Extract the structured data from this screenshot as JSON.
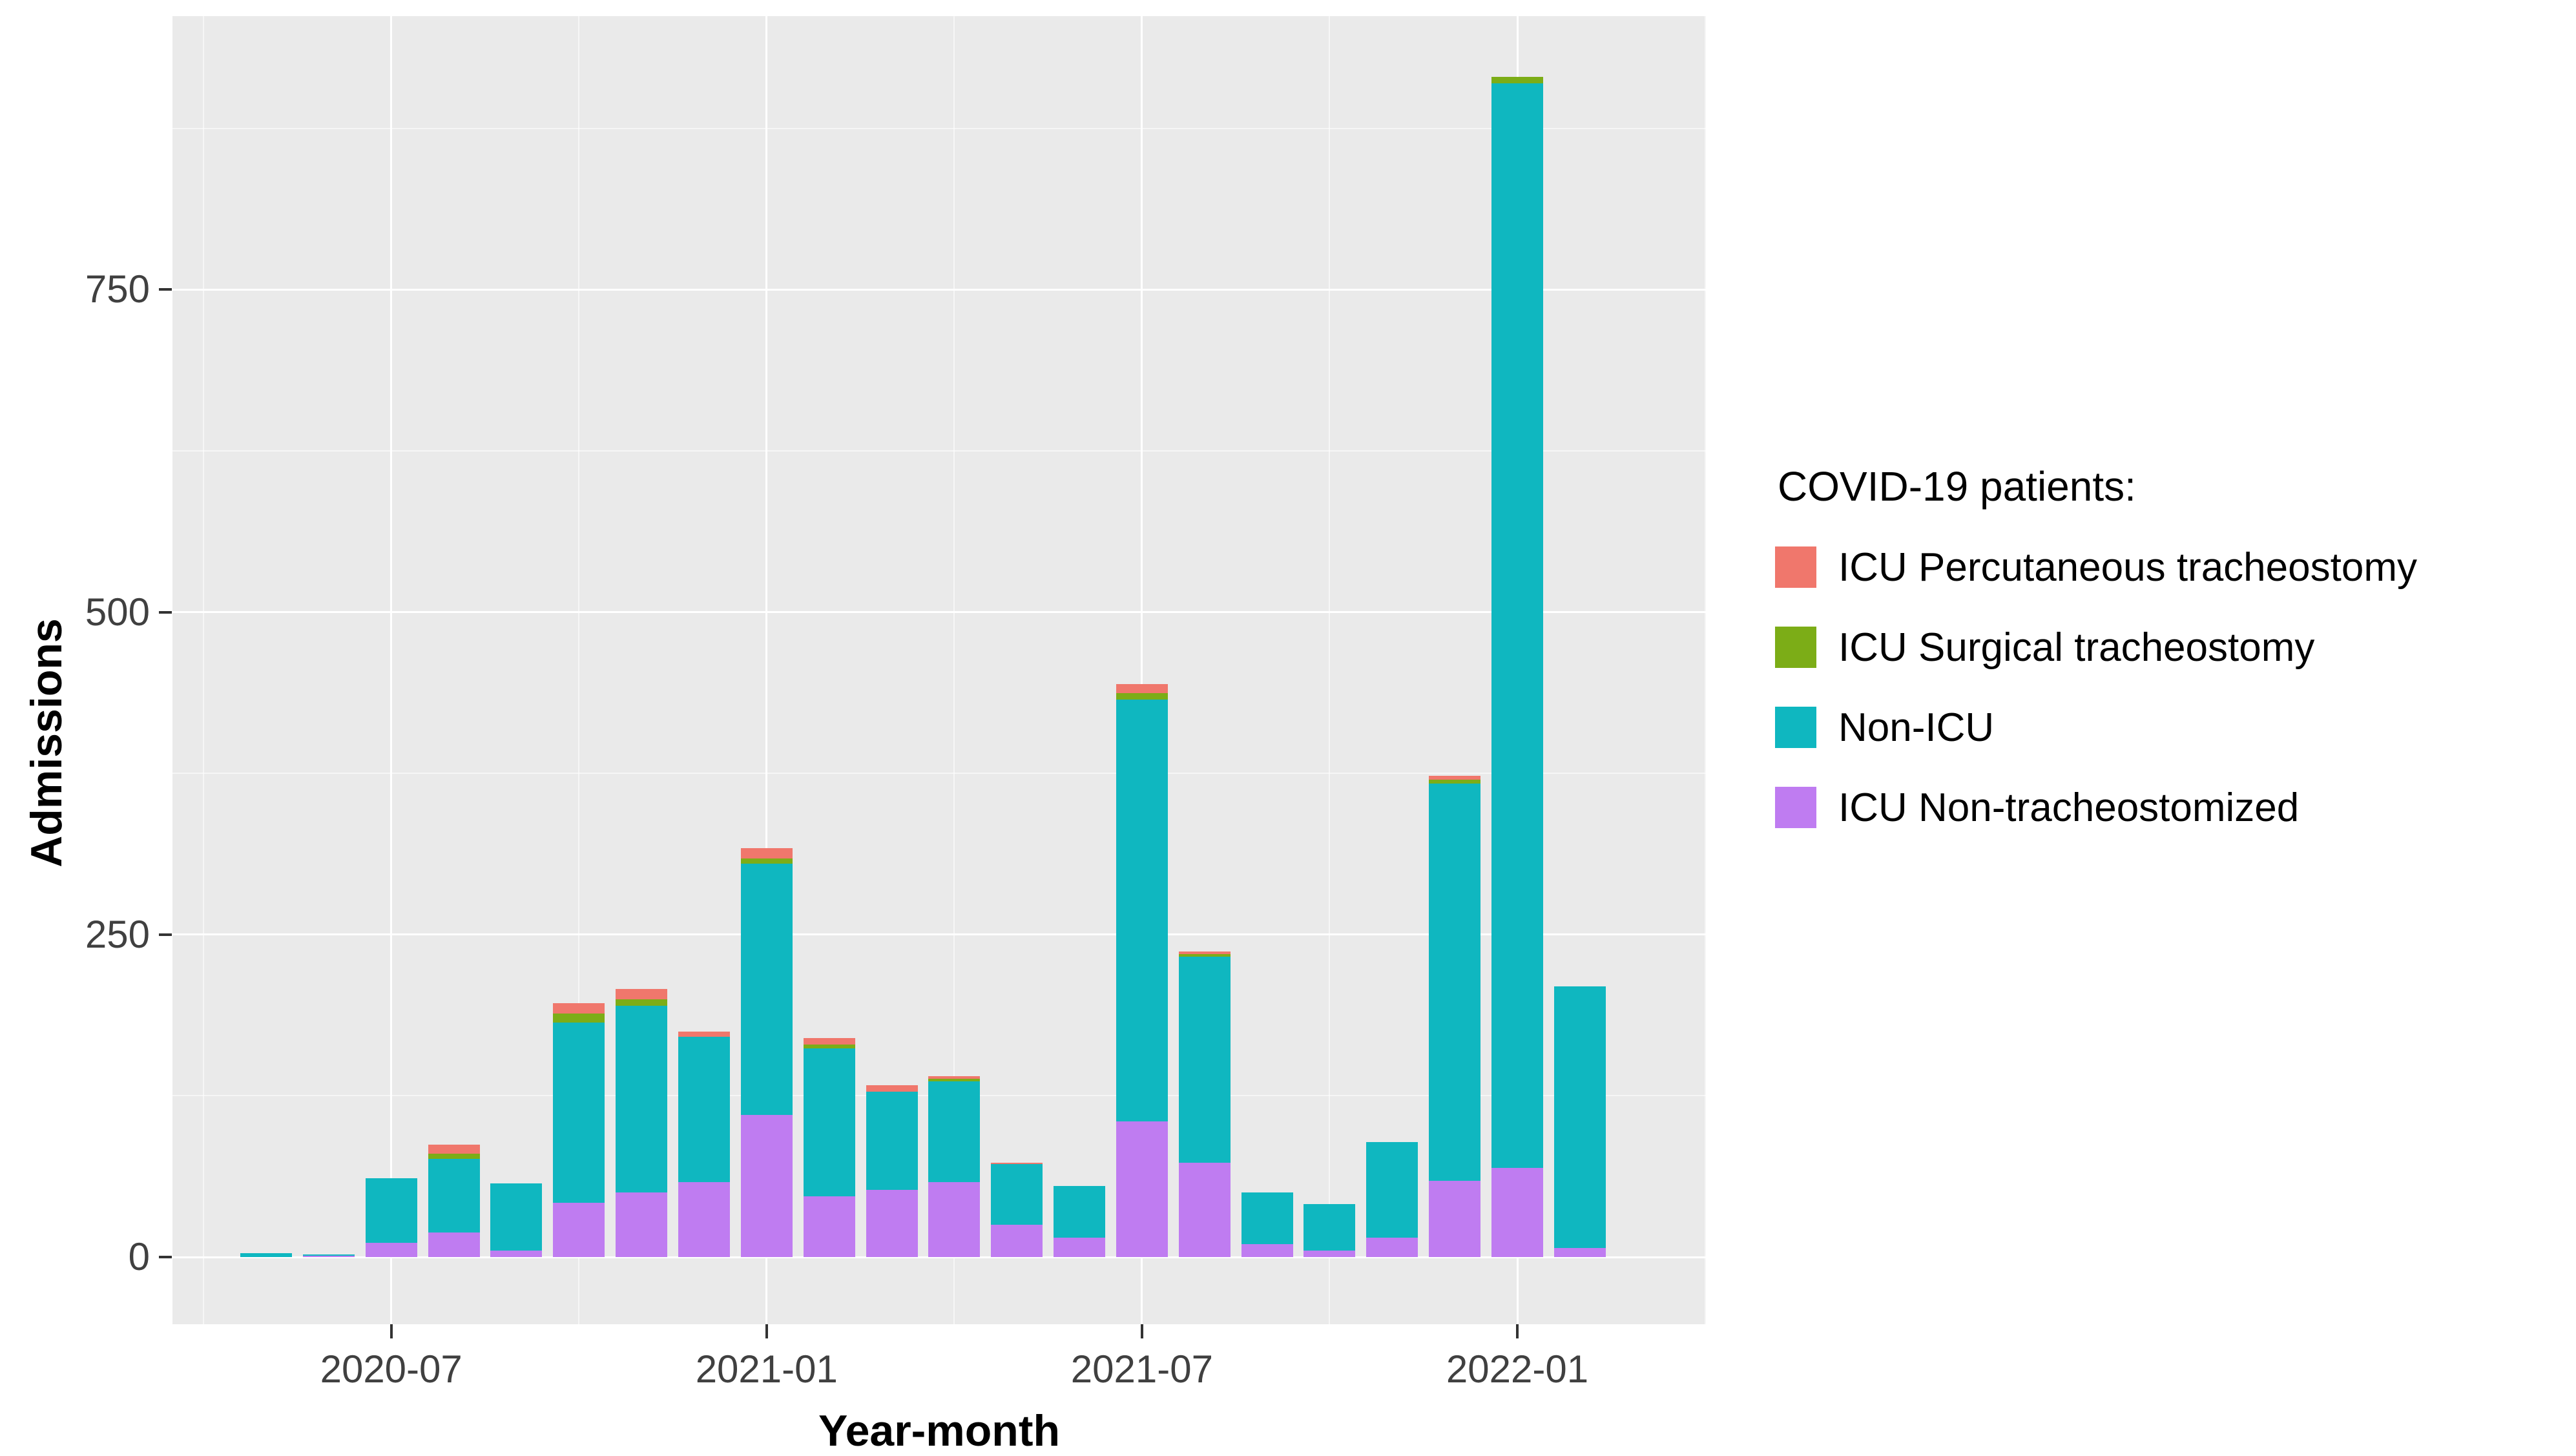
{
  "legend": {
    "title": "COVID-19 patients:",
    "entries": [
      {
        "label": "ICU Percutaneous tracheostomy",
        "color": "#F0776C"
      },
      {
        "label": "ICU Surgical tracheostomy",
        "color": "#7CAD17"
      },
      {
        "label": "Non-ICU",
        "color": "#0FB7C0"
      },
      {
        "label": "ICU Non-tracheostomized",
        "color": "#BF7CF1"
      }
    ]
  },
  "chart_data": {
    "type": "bar",
    "stacked": true,
    "title": "",
    "xlabel": "Year-month",
    "ylabel": "Admissions",
    "x": [
      "2020-05",
      "2020-06",
      "2020-07",
      "2020-08",
      "2020-09",
      "2020-10",
      "2020-11",
      "2020-12",
      "2021-01",
      "2021-02",
      "2021-03",
      "2021-04",
      "2021-05",
      "2021-06",
      "2021-07",
      "2021-08",
      "2021-09",
      "2021-10",
      "2021-11",
      "2021-12",
      "2022-01",
      "2022-02"
    ],
    "x_tick_labels": [
      "2020-07",
      "2021-01",
      "2021-07",
      "2022-01"
    ],
    "y_ticks": [
      0,
      250,
      500,
      750
    ],
    "ylim": [
      0,
      960
    ],
    "grid": true,
    "legend_position": "right",
    "panel_background": "#EAEAEA",
    "gridline_color": "#FFFFFF",
    "series": [
      {
        "name": "ICU Non-tracheostomized",
        "color": "#BF7CF1",
        "values": [
          0,
          1,
          11,
          19,
          5,
          42,
          50,
          58,
          110,
          47,
          52,
          58,
          25,
          15,
          105,
          73,
          10,
          5,
          15,
          59,
          69,
          7
        ]
      },
      {
        "name": "Non-ICU",
        "color": "#0FB7C0",
        "values": [
          3,
          1,
          50,
          57,
          52,
          140,
          145,
          113,
          195,
          115,
          76,
          78,
          47,
          40,
          327,
          160,
          40,
          36,
          74,
          308,
          841,
          203
        ]
      },
      {
        "name": "ICU Surgical tracheostomy",
        "color": "#7CAD17",
        "values": [
          0,
          0,
          0,
          4,
          0,
          7,
          5,
          0,
          4,
          3,
          0,
          2,
          0,
          0,
          5,
          2,
          0,
          0,
          0,
          3,
          5,
          0
        ]
      },
      {
        "name": "ICU Percutaneous tracheostomy",
        "color": "#F0776C",
        "values": [
          0,
          0,
          0,
          7,
          0,
          8,
          8,
          4,
          8,
          5,
          5,
          2,
          1,
          0,
          7,
          2,
          0,
          0,
          0,
          3,
          0,
          0
        ]
      }
    ],
    "totals": [
      3,
      2,
      61,
      87,
      57,
      197,
      208,
      175,
      317,
      170,
      133,
      140,
      73,
      55,
      444,
      237,
      50,
      41,
      89,
      373,
      915,
      210
    ]
  }
}
